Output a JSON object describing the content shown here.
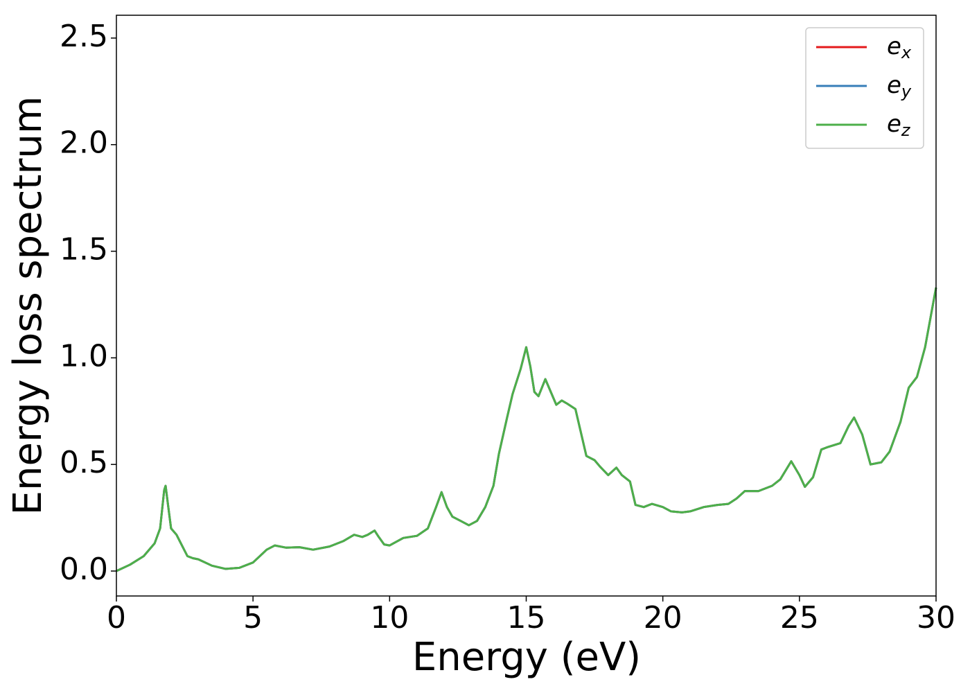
{
  "chart_data": {
    "type": "line",
    "xlabel": "Energy (eV)",
    "ylabel": "Energy loss spectrum",
    "x": [
      0,
      0.5,
      1.0,
      1.4,
      1.6,
      1.75,
      1.8,
      1.9,
      2.0,
      2.2,
      2.4,
      2.6,
      2.8,
      3.0,
      3.5,
      4.0,
      4.5,
      5.0,
      5.5,
      5.8,
      6.2,
      6.7,
      7.2,
      7.8,
      8.3,
      8.7,
      9.0,
      9.2,
      9.45,
      9.6,
      9.8,
      10.0,
      10.5,
      11.0,
      11.4,
      11.7,
      11.9,
      12.1,
      12.3,
      12.6,
      12.9,
      13.2,
      13.5,
      13.8,
      14.0,
      14.3,
      14.5,
      14.8,
      15.0,
      15.15,
      15.3,
      15.45,
      15.7,
      15.9,
      16.1,
      16.3,
      16.5,
      16.8,
      17.0,
      17.2,
      17.5,
      17.7,
      18.0,
      18.3,
      18.5,
      18.8,
      19.0,
      19.3,
      19.6,
      20.0,
      20.3,
      20.7,
      21.0,
      21.5,
      22.0,
      22.4,
      22.7,
      23.0,
      23.5,
      24.0,
      24.3,
      24.7,
      25.0,
      25.2,
      25.5,
      25.8,
      26.0,
      26.5,
      26.8,
      27.0,
      27.3,
      27.6,
      28.0,
      28.3,
      28.7,
      29.0,
      29.3,
      29.6,
      30.0
    ],
    "series": [
      {
        "name": "ex",
        "color": "#e41a1c",
        "values": [
          0,
          0.03,
          0.07,
          0.13,
          0.2,
          0.38,
          0.4,
          0.3,
          0.2,
          0.17,
          0.12,
          0.07,
          0.06,
          0.055,
          0.025,
          0.01,
          0.015,
          0.04,
          0.1,
          0.12,
          0.11,
          0.112,
          0.1,
          0.115,
          0.14,
          0.17,
          0.16,
          0.17,
          0.19,
          0.16,
          0.125,
          0.12,
          0.155,
          0.165,
          0.2,
          0.3,
          0.37,
          0.3,
          0.255,
          0.235,
          0.215,
          0.235,
          0.3,
          0.4,
          0.55,
          0.72,
          0.83,
          0.95,
          1.05,
          0.96,
          0.84,
          0.82,
          0.9,
          0.84,
          0.78,
          0.8,
          0.785,
          0.76,
          0.65,
          0.54,
          0.52,
          0.49,
          0.45,
          0.485,
          0.45,
          0.42,
          0.31,
          0.3,
          0.315,
          0.3,
          0.28,
          0.275,
          0.28,
          0.3,
          0.31,
          0.315,
          0.34,
          0.375,
          0.375,
          0.4,
          0.43,
          0.515,
          0.45,
          0.395,
          0.44,
          0.57,
          0.58,
          0.6,
          0.68,
          0.72,
          0.64,
          0.5,
          0.51,
          0.56,
          0.7,
          0.86,
          0.91,
          1.05,
          1.33
        ]
      },
      {
        "name": "ey",
        "color": "#377eb8",
        "values": [
          0,
          0.03,
          0.07,
          0.13,
          0.2,
          0.38,
          0.4,
          0.3,
          0.2,
          0.17,
          0.12,
          0.07,
          0.06,
          0.055,
          0.025,
          0.01,
          0.015,
          0.04,
          0.1,
          0.12,
          0.11,
          0.112,
          0.1,
          0.115,
          0.14,
          0.17,
          0.16,
          0.17,
          0.19,
          0.16,
          0.125,
          0.12,
          0.155,
          0.165,
          0.2,
          0.3,
          0.37,
          0.3,
          0.255,
          0.235,
          0.215,
          0.235,
          0.3,
          0.4,
          0.55,
          0.72,
          0.83,
          0.95,
          1.05,
          0.96,
          0.84,
          0.82,
          0.9,
          0.84,
          0.78,
          0.8,
          0.785,
          0.76,
          0.65,
          0.54,
          0.52,
          0.49,
          0.45,
          0.485,
          0.45,
          0.42,
          0.31,
          0.3,
          0.315,
          0.3,
          0.28,
          0.275,
          0.28,
          0.3,
          0.31,
          0.315,
          0.34,
          0.375,
          0.375,
          0.4,
          0.43,
          0.515,
          0.45,
          0.395,
          0.44,
          0.57,
          0.58,
          0.6,
          0.68,
          0.72,
          0.64,
          0.5,
          0.51,
          0.56,
          0.7,
          0.86,
          0.91,
          1.05,
          1.33
        ]
      },
      {
        "name": "ez",
        "color": "#4daf4a",
        "values": [
          0,
          0.03,
          0.07,
          0.13,
          0.2,
          0.38,
          0.4,
          0.3,
          0.2,
          0.17,
          0.12,
          0.07,
          0.06,
          0.055,
          0.025,
          0.01,
          0.015,
          0.04,
          0.1,
          0.12,
          0.11,
          0.112,
          0.1,
          0.115,
          0.14,
          0.17,
          0.16,
          0.17,
          0.19,
          0.16,
          0.125,
          0.12,
          0.155,
          0.165,
          0.2,
          0.3,
          0.37,
          0.3,
          0.255,
          0.235,
          0.215,
          0.235,
          0.3,
          0.4,
          0.55,
          0.72,
          0.83,
          0.95,
          1.05,
          0.96,
          0.84,
          0.82,
          0.9,
          0.84,
          0.78,
          0.8,
          0.785,
          0.76,
          0.65,
          0.54,
          0.52,
          0.49,
          0.45,
          0.485,
          0.45,
          0.42,
          0.31,
          0.3,
          0.315,
          0.3,
          0.28,
          0.275,
          0.28,
          0.3,
          0.31,
          0.315,
          0.34,
          0.375,
          0.375,
          0.4,
          0.43,
          0.515,
          0.45,
          0.395,
          0.44,
          0.57,
          0.58,
          0.6,
          0.68,
          0.72,
          0.64,
          0.5,
          0.51,
          0.56,
          0.7,
          0.86,
          0.91,
          1.05,
          1.33
        ]
      }
    ],
    "xlim": [
      0,
      30
    ],
    "xticks": [
      0,
      5,
      10,
      15,
      20,
      25,
      30
    ],
    "ylim": [
      -0.117,
      2.607
    ],
    "yticks": [
      {
        "value": 0,
        "label": "0.0"
      },
      0.5,
      {
        "value": 1,
        "label": "1.0"
      },
      1.5,
      {
        "value": 2,
        "label": "2.0"
      },
      2.5
    ],
    "legend": "upper right",
    "grid": false
  }
}
